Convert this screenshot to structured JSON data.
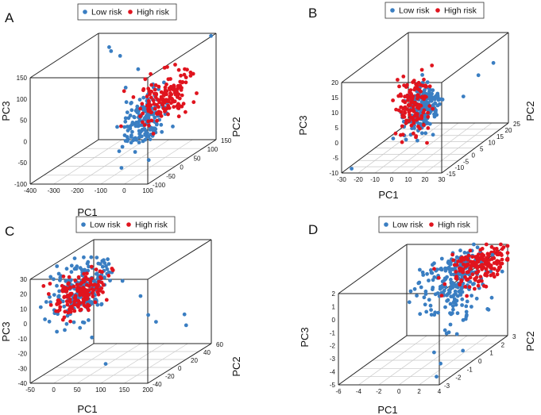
{
  "colors": {
    "low": "#3a7ec2",
    "high": "#e0141e"
  },
  "chart_data": [
    {
      "type": "scatter",
      "panel_label": "A",
      "legend": [
        "Low risk",
        "High risk"
      ],
      "xlabel": "PC1",
      "ylabel": "PC2",
      "zlabel": "PC3",
      "x_ticks": [
        "-400",
        "-300",
        "-200",
        "-100",
        "0",
        "100"
      ],
      "y_ticks": [
        "-100",
        "-50",
        "0",
        "50",
        "100",
        "150"
      ],
      "z_ticks": [
        "-100",
        "-50",
        "0",
        "50",
        "100",
        "150"
      ],
      "xlim": [
        -400,
        100
      ],
      "ylim": [
        -100,
        150
      ],
      "zlim": [
        -100,
        150
      ],
      "cloud": {
        "low": {
          "n": 170,
          "x": [
            -20,
            28
          ],
          "y": [
            -10,
            32
          ],
          "z": [
            10,
            28
          ]
        },
        "high": {
          "n": 150,
          "x": [
            10,
            30
          ],
          "y": [
            40,
            40
          ],
          "z": [
            45,
            28
          ]
        },
        "tail_low": [
          [
            -320,
            120,
            130
          ],
          [
            -300,
            110,
            125
          ],
          [
            -250,
            100,
            118
          ],
          [
            -150,
            80,
            95
          ],
          [
            90,
            140,
            148
          ],
          [
            -180,
            60,
            60
          ]
        ]
      }
    },
    {
      "type": "scatter",
      "panel_label": "B",
      "legend": [
        "Low risk",
        "High risk"
      ],
      "xlabel": "PC1",
      "ylabel": "PC2",
      "zlabel": "PC3",
      "x_ticks": [
        "-30",
        "-20",
        "-10",
        "0",
        "10",
        "20",
        "30"
      ],
      "y_ticks": [
        "-15",
        "-10",
        "-5",
        "0",
        "5",
        "10",
        "15",
        "20",
        "25"
      ],
      "z_ticks": [
        "-10",
        "-5",
        "0",
        "5",
        "10",
        "15",
        "20"
      ],
      "xlim": [
        -30,
        30
      ],
      "ylim": [
        -15,
        25
      ],
      "zlim": [
        -10,
        20
      ],
      "cloud": {
        "low": {
          "n": 200,
          "x": [
            2,
            3.5
          ],
          "y": [
            2,
            4
          ],
          "z": [
            4,
            3.5
          ]
        },
        "high": {
          "n": 130,
          "x": [
            -2,
            3
          ],
          "y": [
            0,
            4
          ],
          "z": [
            6,
            5
          ]
        },
        "tail_low": [
          [
            22,
            15,
            10
          ],
          [
            26,
            20,
            12
          ],
          [
            18,
            10,
            5
          ],
          [
            -25,
            -14,
            -9
          ]
        ]
      }
    },
    {
      "type": "scatter",
      "panel_label": "C",
      "legend": [
        "Low risk",
        "High risk"
      ],
      "xlabel": "PC1",
      "ylabel": "PC2",
      "zlabel": "PC3",
      "x_ticks": [
        "-50",
        "0",
        "50",
        "100",
        "150",
        "200"
      ],
      "y_ticks": [
        "-40",
        "-20",
        "0",
        "20",
        "40",
        "60"
      ],
      "z_ticks": [
        "-40",
        "-30",
        "-20",
        "-10",
        "0",
        "10",
        "20",
        "30"
      ],
      "xlim": [
        -50,
        200
      ],
      "ylim": [
        -40,
        60
      ],
      "zlim": [
        -40,
        30
      ],
      "cloud": {
        "low": {
          "n": 200,
          "x": [
            12,
            22
          ],
          "y": [
            -5,
            18
          ],
          "z": [
            14,
            9
          ]
        },
        "high": {
          "n": 160,
          "x": [
            10,
            18
          ],
          "y": [
            -8,
            14
          ],
          "z": [
            11,
            7
          ]
        },
        "tail_low": [
          [
            120,
            20,
            -10
          ],
          [
            150,
            10,
            -12
          ],
          [
            170,
            40,
            -15
          ],
          [
            160,
            50,
            -25
          ],
          [
            90,
            30,
            0
          ],
          [
            70,
            -10,
            -35
          ]
        ]
      }
    },
    {
      "type": "scatter",
      "panel_label": "D",
      "legend": [
        "Low risk",
        "High risk"
      ],
      "xlabel": "PC1",
      "ylabel": "PC2",
      "zlabel": "PC3",
      "x_ticks": [
        "-6",
        "-4",
        "-2",
        "0",
        "2",
        "4"
      ],
      "y_ticks": [
        "-3",
        "-2",
        "-1",
        "0",
        "1",
        "2",
        "3"
      ],
      "z_ticks": [
        "-5",
        "-4",
        "-3",
        "-2",
        "-1",
        "0",
        "1",
        "2"
      ],
      "xlim": [
        -6,
        4
      ],
      "ylim": [
        -3,
        3
      ],
      "zlim": [
        -5,
        2
      ],
      "cloud": {
        "low": {
          "n": 240,
          "x": [
            1.3,
            1.3
          ],
          "y": [
            0.8,
            0.9
          ],
          "z": [
            0.6,
            1.6
          ]
        },
        "high": {
          "n": 170,
          "x": [
            2.6,
            1.2
          ],
          "y": [
            1.8,
            0.9
          ],
          "z": [
            1.2,
            0.6
          ]
        },
        "tail_low": [
          [
            3.5,
            -2.8,
            -4.5
          ],
          [
            3,
            -2,
            -4
          ],
          [
            2.5,
            3,
            1.2
          ]
        ]
      }
    }
  ]
}
